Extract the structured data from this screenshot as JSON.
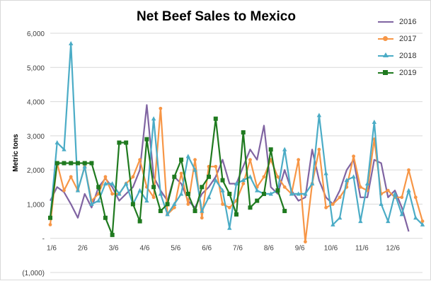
{
  "chart_data": {
    "type": "line",
    "title": "Net Beef Sales to Mexico",
    "ylabel": "Metric tons",
    "xlabel": "",
    "ylim": [
      -1000,
      6000
    ],
    "yticks": [
      -1000,
      0,
      1000,
      2000,
      3000,
      4000,
      5000,
      6000
    ],
    "ytick_labels": [
      "(1,000)",
      "-",
      "1,000",
      "2,000",
      "3,000",
      "4,000",
      "5,000",
      "6,000"
    ],
    "x_tick_labels": [
      "1/6",
      "2/6",
      "3/6",
      "4/6",
      "5/6",
      "6/6",
      "7/6",
      "8/6",
      "9/6",
      "10/6",
      "11/6",
      "12/6"
    ],
    "x_unit": "week of year",
    "grid": true,
    "legend_position": "top-right",
    "series": [
      {
        "name": "2016",
        "color": "#8064a2",
        "marker": "none",
        "values": [
          1100,
          1500,
          1350,
          1000,
          600,
          1300,
          900,
          1500,
          1750,
          1500,
          1100,
          1300,
          1500,
          2000,
          3900,
          1800,
          1400,
          1100,
          1800,
          1600,
          1100,
          900,
          1300,
          1500,
          1800,
          2300,
          1600,
          1600,
          2100,
          2600,
          2300,
          3300,
          1500,
          1300,
          2000,
          1400,
          1100,
          1200,
          2600,
          1700,
          1200,
          1000,
          1400,
          2000,
          2300,
          1200,
          1200,
          2300,
          2200,
          1200,
          1400,
          900,
          200
        ]
      },
      {
        "name": "2017",
        "color": "#f79646",
        "marker": "circle",
        "values": [
          400,
          2200,
          1400,
          1800,
          1400,
          2100,
          1100,
          1300,
          1800,
          1300,
          1300,
          1600,
          1800,
          2300,
          1500,
          1200,
          3800,
          700,
          900,
          1900,
          1000,
          2300,
          600,
          2100,
          2100,
          1000,
          900,
          1100,
          1600,
          2300,
          1500,
          1800,
          2300,
          1800,
          1500,
          1300,
          2300,
          -100,
          1600,
          2600,
          900,
          1000,
          1200,
          1500,
          2400,
          1500,
          1400,
          2900,
          1300,
          1400,
          1200,
          1200,
          2000,
          1200,
          500
        ]
      },
      {
        "name": "2018",
        "color": "#4bacc6",
        "marker": "triangle",
        "values": [
          600,
          2800,
          2600,
          5700,
          1400,
          2100,
          1000,
          1100,
          1600,
          1600,
          1300,
          1600,
          1000,
          1400,
          1100,
          3500,
          1300,
          700,
          1000,
          1300,
          2400,
          2000,
          800,
          1200,
          1700,
          1400,
          300,
          1600,
          1700,
          1800,
          1400,
          1300,
          1300,
          1400,
          2600,
          1300,
          1300,
          1300,
          1600,
          3600,
          1900,
          400,
          600,
          1700,
          1800,
          500,
          1600,
          3400,
          1000,
          500,
          1300,
          700,
          1400,
          600,
          400
        ]
      },
      {
        "name": "2019",
        "color": "#1f7a1f",
        "marker": "square",
        "values": [
          600,
          2200,
          2200,
          2200,
          2200,
          2200,
          2200,
          1500,
          600,
          100,
          2800,
          2800,
          1000,
          500,
          2900,
          1500,
          800,
          1000,
          1800,
          2300,
          1300,
          800,
          1500,
          1800,
          3500,
          1700,
          1300,
          700,
          3100,
          900,
          1100,
          1300,
          2600,
          1400,
          800
        ]
      }
    ]
  }
}
